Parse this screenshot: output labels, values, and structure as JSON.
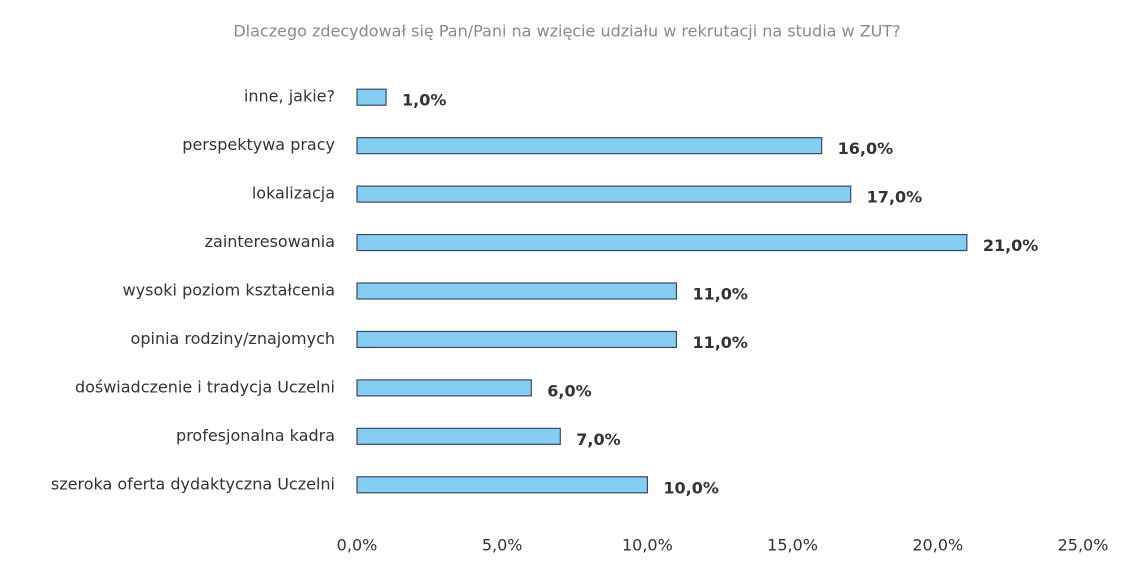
{
  "chart_data": {
    "type": "bar",
    "orientation": "horizontal",
    "title": "Dlaczego zdecydował się Pan/Pani na wzięcie udziału w rekrutacji na studia w ZUT?",
    "categories": [
      "inne, jakie?",
      "perspektywa pracy",
      "lokalizacja",
      "zainteresowania",
      "wysoki poziom kształcenia",
      "opinia rodziny/znajomych",
      "doświadczenie i tradycja Uczelni",
      "profesjonalna kadra",
      "szeroka oferta dydaktyczna Uczelni"
    ],
    "values": [
      1,
      16,
      17,
      21,
      11,
      11,
      6,
      7,
      10
    ],
    "value_labels": [
      "1,0%",
      "16,0%",
      "17,0%",
      "21,0%",
      "11,0%",
      "11,0%",
      "6,0%",
      "7,0%",
      "10,0%"
    ],
    "color": "#86cdf2",
    "xlim": [
      0,
      25
    ],
    "xticks": [
      {
        "value": 0,
        "label": "0,0%"
      },
      {
        "value": 5,
        "label": "5,0%"
      },
      {
        "value": 10,
        "label": "10,0%"
      },
      {
        "value": 15,
        "label": "15,0%"
      },
      {
        "value": 20,
        "label": "20,0%"
      },
      {
        "value": 25,
        "label": "25,0%"
      }
    ],
    "grid": false
  }
}
